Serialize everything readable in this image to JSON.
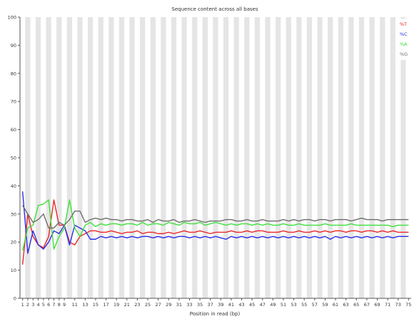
{
  "chart_data": {
    "type": "line",
    "title": "Sequence content across all bases",
    "xlabel": "Position in read (bp)",
    "ylabel": "",
    "ylim": [
      0,
      100
    ],
    "yticks": [
      0,
      10,
      20,
      30,
      40,
      50,
      60,
      70,
      80,
      90,
      100
    ],
    "xtick_labels": [
      "1",
      "2",
      "3",
      "4",
      "5",
      "6",
      "7",
      "8",
      "9",
      "11",
      "13",
      "15",
      "17",
      "19",
      "21",
      "23",
      "25",
      "27",
      "29",
      "31",
      "33",
      "35",
      "37",
      "39",
      "41",
      "43",
      "45",
      "47",
      "49",
      "51",
      "53",
      "55",
      "57",
      "59",
      "61",
      "63",
      "65",
      "67",
      "69",
      "71",
      "73",
      "75"
    ],
    "positions": 75,
    "grid": "alternating vertical bands",
    "legend_position": "top-right",
    "series": [
      {
        "name": "%T",
        "color": "#e8272a",
        "values": [
          12,
          30,
          22,
          19,
          18,
          22,
          35,
          26,
          26,
          20,
          19,
          22,
          23,
          24,
          24,
          23.5,
          23.5,
          24,
          23.5,
          23,
          23.5,
          23.5,
          24,
          23,
          23.5,
          23.5,
          23,
          23,
          23.5,
          23,
          23.5,
          24,
          23.5,
          23.5,
          24,
          23.5,
          23,
          23.5,
          23.5,
          23.5,
          24,
          23.5,
          23.5,
          24,
          23.5,
          24,
          24,
          23.5,
          23.5,
          23.5,
          24,
          23.5,
          23.5,
          24,
          23.5,
          23.5,
          24,
          23.5,
          24,
          23.5,
          24,
          24,
          23.5,
          24,
          24,
          23.5,
          24,
          24,
          23.5,
          24,
          23.5,
          24,
          23.5,
          23.5,
          23.5
        ]
      },
      {
        "name": "%C",
        "color": "#2d2ee8",
        "values": [
          38,
          16,
          24,
          19,
          17.5,
          20,
          24,
          23,
          26,
          19,
          26,
          25,
          24,
          21,
          21,
          22,
          21.5,
          22,
          21.5,
          22,
          21.5,
          22,
          21.5,
          22,
          22,
          21.5,
          22,
          21.5,
          22,
          21.5,
          22,
          22,
          21.5,
          22,
          21.5,
          22,
          21.5,
          22,
          21.5,
          21,
          22,
          21.5,
          22,
          21.5,
          22,
          21.5,
          22,
          21.5,
          22,
          21.5,
          22,
          21.5,
          22,
          21.5,
          22,
          21.5,
          22,
          21.5,
          22,
          21,
          22,
          21.5,
          22,
          21.5,
          22,
          21.5,
          22,
          21.5,
          22,
          21.5,
          22,
          21.5,
          22,
          22,
          22
        ]
      },
      {
        "name": "%A",
        "color": "#3fe03b",
        "values": [
          17,
          25,
          26,
          33,
          33.5,
          35,
          17.5,
          22,
          25,
          35,
          25,
          22,
          26,
          27,
          25.5,
          26.5,
          26,
          26.5,
          26.5,
          26,
          26.5,
          26.5,
          26,
          27,
          26,
          26.5,
          26.5,
          26,
          27,
          26.5,
          26,
          27,
          26.5,
          26.5,
          27,
          26,
          26.5,
          27,
          26.5,
          26,
          26.5,
          26,
          26.5,
          26.5,
          26,
          26.5,
          26,
          26.5,
          26,
          26,
          26.5,
          26,
          26,
          26.5,
          26,
          26,
          26,
          26,
          26.5,
          26,
          26,
          26,
          26,
          26.5,
          26,
          26,
          26,
          26,
          26,
          26,
          26,
          25.5,
          26,
          26,
          26
        ]
      },
      {
        "name": "%G",
        "color": "#6e6e6e",
        "values": [
          33,
          30,
          27,
          28,
          30,
          25,
          25,
          27,
          26,
          28,
          31,
          31,
          27,
          28,
          28.5,
          28,
          28.5,
          28,
          28,
          27.5,
          28,
          28,
          27.5,
          27.5,
          28,
          27,
          28,
          27.5,
          27.5,
          28,
          27,
          27.5,
          27.5,
          28,
          27.5,
          27,
          27.5,
          27.5,
          27.5,
          28,
          28,
          27.5,
          27.5,
          28,
          27.5,
          27.5,
          28,
          27.5,
          27.5,
          27.5,
          28,
          27.5,
          28,
          27.5,
          28,
          28,
          27.5,
          28,
          28,
          27.5,
          28,
          28,
          28,
          27.5,
          28,
          28.5,
          28,
          28,
          28,
          27.5,
          28,
          28,
          28,
          28,
          28
        ]
      }
    ]
  }
}
